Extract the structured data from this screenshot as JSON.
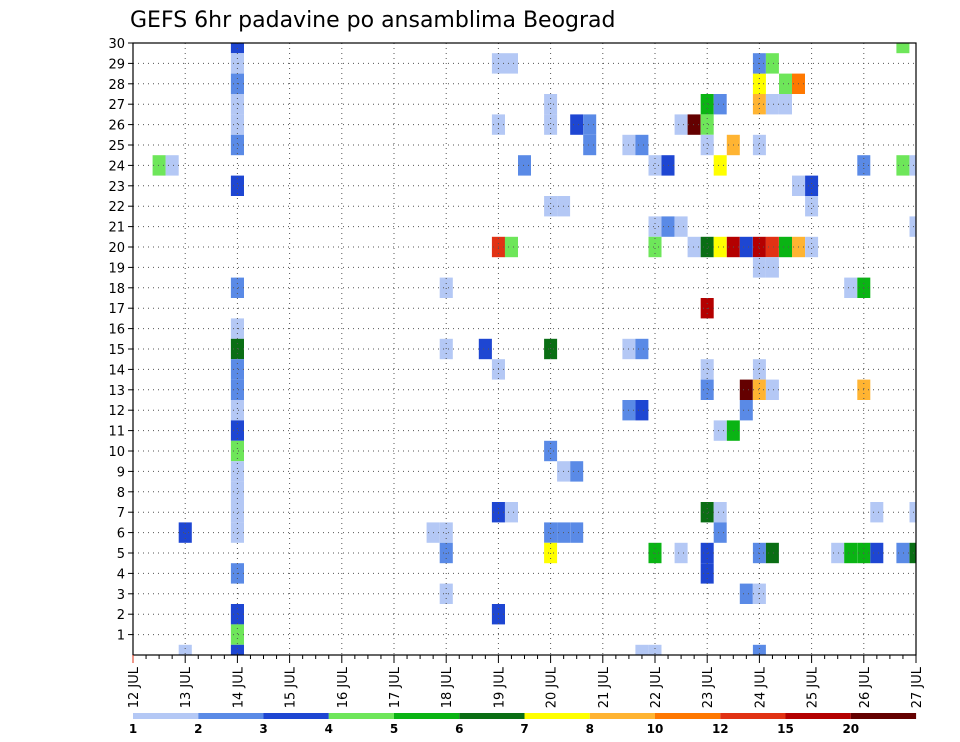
{
  "chart_data": {
    "type": "heatmap",
    "title": "GEFS 6hr padavine po ansamblima Beograd",
    "xlabel": "",
    "ylabel": "",
    "x_tick_labels": [
      "12 JUL",
      "13 JUL",
      "14 JUL",
      "15 JUL",
      "16 JUL",
      "17 JUL",
      "18 JUL",
      "19 JUL",
      "20 JUL",
      "21 JUL",
      "22 JUL",
      "23 JUL",
      "24 JUL",
      "25 JUL",
      "26 JUL",
      "27 JUL"
    ],
    "xlim": [
      12,
      27
    ],
    "y_tick_labels": [
      "1",
      "2",
      "3",
      "4",
      "5",
      "6",
      "7",
      "8",
      "9",
      "10",
      "11",
      "12",
      "13",
      "14",
      "15",
      "16",
      "17",
      "18",
      "19",
      "20",
      "21",
      "22",
      "23",
      "24",
      "25",
      "26",
      "27",
      "28",
      "29",
      "30"
    ],
    "ylim": [
      0,
      30
    ],
    "grid": true,
    "time_step_days": 0.25,
    "legend": {
      "placement": "bottom",
      "labels": [
        "1",
        "2",
        "3",
        "4",
        "5",
        "6",
        "7",
        "8",
        "10",
        "12",
        "15",
        "20"
      ],
      "colors": [
        "#b4c8f5",
        "#5a8ae6",
        "#1e46d2",
        "#6ee65a",
        "#0ab414",
        "#0a6e14",
        "#ffff00",
        "#ffb432",
        "#ff7800",
        "#e13214",
        "#b40000",
        "#640000"
      ]
    },
    "cells": [
      {
        "member": 30,
        "day": 14,
        "v": 3
      },
      {
        "member": 29,
        "day": 14,
        "v": 1
      },
      {
        "member": 28,
        "day": 14,
        "v": 2
      },
      {
        "member": 27,
        "day": 14,
        "v": 1
      },
      {
        "member": 26,
        "day": 14,
        "v": 1
      },
      {
        "member": 25,
        "day": 14,
        "v": 2
      },
      {
        "member": 23,
        "day": 14,
        "v": 3
      },
      {
        "member": 18,
        "day": 14,
        "v": 2
      },
      {
        "member": 16,
        "day": 14,
        "v": 1
      },
      {
        "member": 15,
        "day": 14,
        "v": 6
      },
      {
        "member": 14,
        "day": 14,
        "v": 2
      },
      {
        "member": 13,
        "day": 14,
        "v": 2
      },
      {
        "member": 12,
        "day": 14,
        "v": 1
      },
      {
        "member": 11,
        "day": 14,
        "v": 3
      },
      {
        "member": 10,
        "day": 14,
        "v": 4
      },
      {
        "member": 9,
        "day": 14,
        "v": 1
      },
      {
        "member": 8,
        "day": 14,
        "v": 1
      },
      {
        "member": 7,
        "day": 14,
        "v": 1
      },
      {
        "member": 6,
        "day": 14,
        "v": 1
      },
      {
        "member": 4,
        "day": 14,
        "v": 2
      },
      {
        "member": 2,
        "day": 14,
        "v": 3
      },
      {
        "member": 1,
        "day": 14,
        "v": 4
      },
      {
        "member": 0,
        "day": 14,
        "v": 3
      },
      {
        "member": 24,
        "day": 12.5,
        "v": 4
      },
      {
        "member": 24,
        "day": 12.75,
        "v": 1
      },
      {
        "member": 6,
        "day": 13,
        "v": 3
      },
      {
        "member": 0,
        "day": 13,
        "v": 1
      },
      {
        "member": 29,
        "day": 19,
        "v": 1
      },
      {
        "member": 29,
        "day": 19.25,
        "v": 1
      },
      {
        "member": 26,
        "day": 19,
        "v": 1
      },
      {
        "member": 24,
        "day": 19.5,
        "v": 2
      },
      {
        "member": 20,
        "day": 19,
        "v": 12
      },
      {
        "member": 20,
        "day": 19.25,
        "v": 4
      },
      {
        "member": 18,
        "day": 18,
        "v": 1
      },
      {
        "member": 15,
        "day": 18,
        "v": 1
      },
      {
        "member": 15,
        "day": 18.75,
        "v": 3
      },
      {
        "member": 14,
        "day": 19,
        "v": 1
      },
      {
        "member": 7,
        "day": 19,
        "v": 3
      },
      {
        "member": 7,
        "day": 19.25,
        "v": 1
      },
      {
        "member": 6,
        "day": 17.75,
        "v": 1
      },
      {
        "member": 6,
        "day": 18,
        "v": 1
      },
      {
        "member": 5,
        "day": 18,
        "v": 2
      },
      {
        "member": 3,
        "day": 18,
        "v": 1
      },
      {
        "member": 2,
        "day": 19,
        "v": 3
      },
      {
        "member": 27,
        "day": 20,
        "v": 1
      },
      {
        "member": 26,
        "day": 20,
        "v": 1
      },
      {
        "member": 26,
        "day": 20.5,
        "v": 3
      },
      {
        "member": 26,
        "day": 20.75,
        "v": 2
      },
      {
        "member": 25,
        "day": 20.75,
        "v": 2
      },
      {
        "member": 22,
        "day": 20,
        "v": 1
      },
      {
        "member": 22,
        "day": 20.25,
        "v": 1
      },
      {
        "member": 15,
        "day": 20,
        "v": 6
      },
      {
        "member": 10,
        "day": 20,
        "v": 2
      },
      {
        "member": 9,
        "day": 20.25,
        "v": 1
      },
      {
        "member": 9,
        "day": 20.5,
        "v": 2
      },
      {
        "member": 6,
        "day": 20,
        "v": 2
      },
      {
        "member": 6,
        "day": 20.25,
        "v": 2
      },
      {
        "member": 6,
        "day": 20.5,
        "v": 2
      },
      {
        "member": 5,
        "day": 20,
        "v": 7
      },
      {
        "member": 25,
        "day": 21.5,
        "v": 1
      },
      {
        "member": 25,
        "day": 21.75,
        "v": 2
      },
      {
        "member": 24,
        "day": 22,
        "v": 1
      },
      {
        "member": 24,
        "day": 22.25,
        "v": 3
      },
      {
        "member": 21,
        "day": 22,
        "v": 1
      },
      {
        "member": 21,
        "day": 22.25,
        "v": 2
      },
      {
        "member": 21,
        "day": 22.5,
        "v": 1
      },
      {
        "member": 20,
        "day": 22,
        "v": 4
      },
      {
        "member": 15,
        "day": 21.5,
        "v": 1
      },
      {
        "member": 15,
        "day": 21.75,
        "v": 2
      },
      {
        "member": 12,
        "day": 21.5,
        "v": 2
      },
      {
        "member": 12,
        "day": 21.75,
        "v": 3
      },
      {
        "member": 5,
        "day": 22,
        "v": 5
      },
      {
        "member": 5,
        "day": 22.5,
        "v": 1
      },
      {
        "member": 0,
        "day": 21.75,
        "v": 1
      },
      {
        "member": 0,
        "day": 22,
        "v": 1
      },
      {
        "member": 28,
        "day": 24,
        "v": 7
      },
      {
        "member": 28,
        "day": 24.5,
        "v": 4
      },
      {
        "member": 28,
        "day": 24.75,
        "v": 10
      },
      {
        "member": 29,
        "day": 24,
        "v": 2
      },
      {
        "member": 29,
        "day": 24.25,
        "v": 4
      },
      {
        "member": 27,
        "day": 23,
        "v": 5
      },
      {
        "member": 27,
        "day": 23.25,
        "v": 2
      },
      {
        "member": 27,
        "day": 24,
        "v": 8
      },
      {
        "member": 27,
        "day": 24.25,
        "v": 1
      },
      {
        "member": 27,
        "day": 24.5,
        "v": 1
      },
      {
        "member": 26,
        "day": 22.5,
        "v": 1
      },
      {
        "member": 26,
        "day": 22.75,
        "v": 20
      },
      {
        "member": 26,
        "day": 23,
        "v": 4
      },
      {
        "member": 25,
        "day": 23,
        "v": 1
      },
      {
        "member": 25,
        "day": 23.5,
        "v": 8
      },
      {
        "member": 25,
        "day": 24,
        "v": 1
      },
      {
        "member": 24,
        "day": 23.25,
        "v": 7
      },
      {
        "member": 23,
        "day": 24.75,
        "v": 1
      },
      {
        "member": 23,
        "day": 25,
        "v": 3
      },
      {
        "member": 22,
        "day": 25,
        "v": 1
      },
      {
        "member": 20,
        "day": 22.75,
        "v": 1
      },
      {
        "member": 20,
        "day": 23,
        "v": 6
      },
      {
        "member": 20,
        "day": 23.25,
        "v": 7
      },
      {
        "member": 20,
        "day": 23.5,
        "v": 15
      },
      {
        "member": 20,
        "day": 23.75,
        "v": 3
      },
      {
        "member": 20,
        "day": 24,
        "v": 15
      },
      {
        "member": 20,
        "day": 24.25,
        "v": 12
      },
      {
        "member": 20,
        "day": 24.5,
        "v": 5
      },
      {
        "member": 20,
        "day": 24.75,
        "v": 8
      },
      {
        "member": 20,
        "day": 25,
        "v": 1
      },
      {
        "member": 19,
        "day": 24,
        "v": 1
      },
      {
        "member": 19,
        "day": 24.25,
        "v": 1
      },
      {
        "member": 17,
        "day": 23,
        "v": 15
      },
      {
        "member": 14,
        "day": 23,
        "v": 1
      },
      {
        "member": 14,
        "day": 24,
        "v": 1
      },
      {
        "member": 13,
        "day": 23,
        "v": 2
      },
      {
        "member": 13,
        "day": 23.75,
        "v": 20
      },
      {
        "member": 13,
        "day": 24,
        "v": 8
      },
      {
        "member": 13,
        "day": 24.25,
        "v": 1
      },
      {
        "member": 12,
        "day": 23.75,
        "v": 2
      },
      {
        "member": 11,
        "day": 23.25,
        "v": 1
      },
      {
        "member": 11,
        "day": 23.5,
        "v": 5
      },
      {
        "member": 7,
        "day": 23,
        "v": 6
      },
      {
        "member": 7,
        "day": 23.25,
        "v": 1
      },
      {
        "member": 6,
        "day": 23.25,
        "v": 2
      },
      {
        "member": 5,
        "day": 23,
        "v": 3
      },
      {
        "member": 5,
        "day": 24,
        "v": 2
      },
      {
        "member": 5,
        "day": 24.25,
        "v": 6
      },
      {
        "member": 4,
        "day": 23,
        "v": 3
      },
      {
        "member": 3,
        "day": 23.75,
        "v": 2
      },
      {
        "member": 3,
        "day": 24,
        "v": 1
      },
      {
        "member": 0,
        "day": 24,
        "v": 2
      },
      {
        "member": 30,
        "day": 26.75,
        "v": 4
      },
      {
        "member": 24,
        "day": 26,
        "v": 2
      },
      {
        "member": 24,
        "day": 26.75,
        "v": 4
      },
      {
        "member": 24,
        "day": 27,
        "v": 1
      },
      {
        "member": 21,
        "day": 27,
        "v": 1
      },
      {
        "member": 18,
        "day": 25.75,
        "v": 1
      },
      {
        "member": 18,
        "day": 26,
        "v": 5
      },
      {
        "member": 13,
        "day": 26,
        "v": 8
      },
      {
        "member": 7,
        "day": 26.25,
        "v": 1
      },
      {
        "member": 7,
        "day": 27,
        "v": 1
      },
      {
        "member": 5,
        "day": 25.5,
        "v": 1
      },
      {
        "member": 5,
        "day": 25.75,
        "v": 5
      },
      {
        "member": 5,
        "day": 26,
        "v": 5
      },
      {
        "member": 5,
        "day": 26.25,
        "v": 3
      },
      {
        "member": 5,
        "day": 26.75,
        "v": 2
      },
      {
        "member": 5,
        "day": 27,
        "v": 6
      }
    ]
  }
}
